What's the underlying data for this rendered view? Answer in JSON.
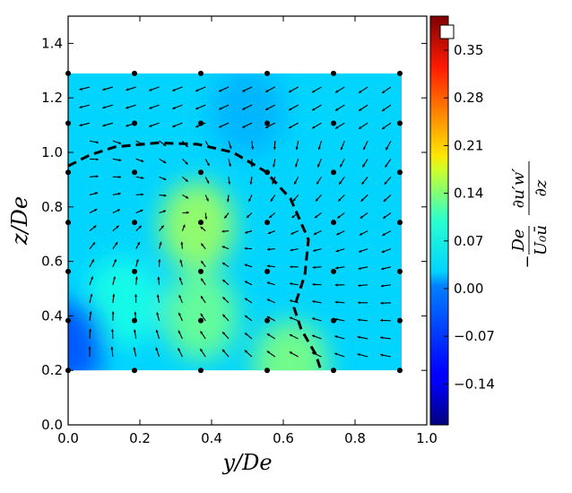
{
  "chart_data": {
    "type": "heatmap",
    "title": "",
    "xlabel": "y/De",
    "ylabel": "z/De",
    "xlim": [
      0.0,
      1.0
    ],
    "ylim": [
      0.0,
      1.5
    ],
    "xticks": [
      "0.0",
      "0.2",
      "0.4",
      "0.6",
      "0.8",
      "1.0"
    ],
    "yticks": [
      "0.0",
      "0.2",
      "0.4",
      "0.6",
      "0.8",
      "1.0",
      "1.2",
      "1.4"
    ],
    "field_extent": {
      "y": [
        0.0,
        0.93
      ],
      "z": [
        0.2,
        1.29
      ]
    },
    "colormap": "jet",
    "colorbar": {
      "label_parts": {
        "prefix": "−",
        "num_left": "De",
        "den_left": "U₀ū",
        "num_right": "∂u′w′",
        "den_right": "∂z"
      },
      "range": [
        -0.2,
        0.4
      ],
      "ticks": [
        "−0.14",
        "−0.07",
        "0.00",
        "0.07",
        "0.14",
        "0.21",
        "0.28",
        "0.35"
      ],
      "tick_values": [
        -0.14,
        -0.07,
        0.0,
        0.07,
        0.14,
        0.21,
        0.28,
        0.35
      ]
    },
    "field_peaks": [
      {
        "y": 0.36,
        "z": 0.73,
        "value": 0.12
      },
      {
        "y": 0.37,
        "z": 0.4,
        "value": 0.09
      },
      {
        "y": 0.62,
        "z": 0.22,
        "value": 0.1
      },
      {
        "y": 0.15,
        "z": 0.45,
        "value": 0.04
      },
      {
        "y": 0.0,
        "z": 0.3,
        "value": -0.08
      },
      {
        "y": 0.5,
        "z": 1.15,
        "value": -0.02
      }
    ],
    "measurement_points": {
      "y": [
        0.0,
        0.185,
        0.37,
        0.555,
        0.74,
        0.925
      ],
      "z": [
        0.2,
        0.383,
        0.563,
        0.743,
        0.927,
        1.107,
        1.29
      ]
    },
    "dashed_boundary": [
      [
        0.0,
        0.95
      ],
      [
        0.06,
        0.99
      ],
      [
        0.13,
        1.02
      ],
      [
        0.25,
        1.035
      ],
      [
        0.36,
        1.03
      ],
      [
        0.46,
        1.0
      ],
      [
        0.55,
        0.93
      ],
      [
        0.62,
        0.83
      ],
      [
        0.67,
        0.68
      ],
      [
        0.66,
        0.55
      ],
      [
        0.63,
        0.43
      ],
      [
        0.65,
        0.35
      ],
      [
        0.69,
        0.26
      ],
      [
        0.705,
        0.2
      ]
    ],
    "vector_field": {
      "description": "in-plane velocity vectors converging toward the core near y/De≈0.37, z/De≈0.75",
      "y_range": [
        0.06,
        0.9
      ],
      "z_range": [
        0.25,
        1.24
      ],
      "columns": 14,
      "rows": 16
    }
  }
}
